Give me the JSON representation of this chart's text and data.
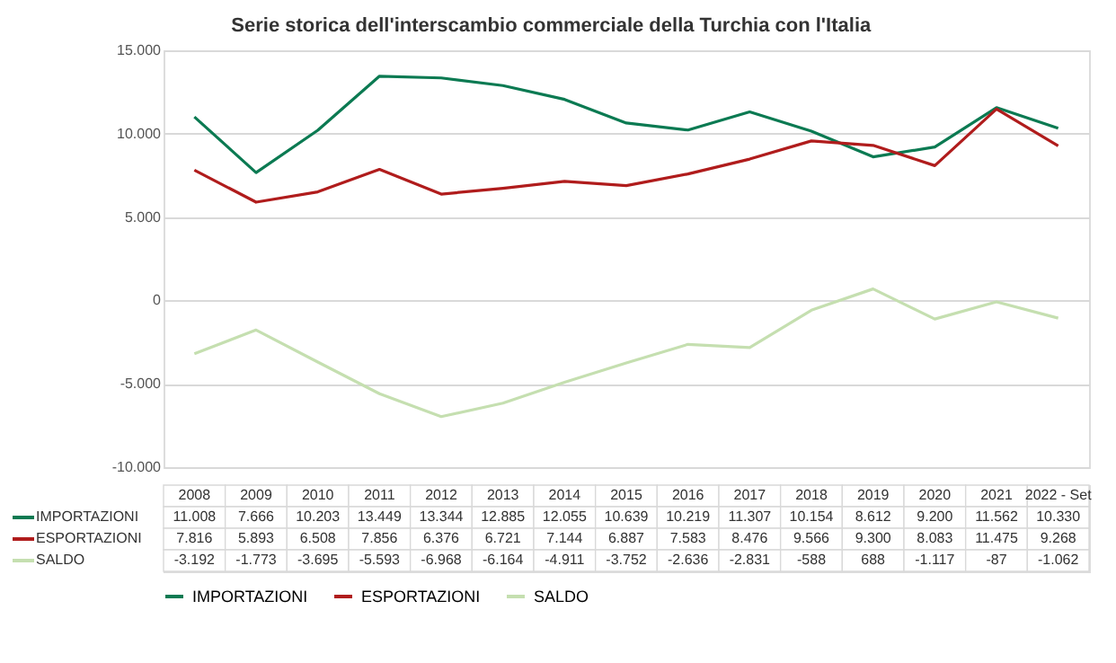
{
  "chart_data": {
    "type": "line",
    "title": "Serie storica dell'interscambio commerciale della Turchia con l'Italia",
    "categories": [
      "2008",
      "2009",
      "2010",
      "2011",
      "2012",
      "2013",
      "2014",
      "2015",
      "2016",
      "2017",
      "2018",
      "2019",
      "2020",
      "2021",
      "2022 - Set"
    ],
    "series": [
      {
        "name": "IMPORTAZIONI",
        "color": "#0b7a52",
        "values": [
          11008,
          7666,
          10203,
          13449,
          13344,
          12885,
          12055,
          10639,
          10219,
          11307,
          10154,
          8612,
          9200,
          11562,
          10330
        ],
        "value_labels": [
          "11.008",
          "7.666",
          "10.203",
          "13.449",
          "13.344",
          "12.885",
          "12.055",
          "10.639",
          "10.219",
          "11.307",
          "10.154",
          "8.612",
          "9.200",
          "11.562",
          "10.330"
        ]
      },
      {
        "name": "ESPORTAZIONI",
        "color": "#b01c1c",
        "values": [
          7816,
          5893,
          6508,
          7856,
          6376,
          6721,
          7144,
          6887,
          7583,
          8476,
          9566,
          9300,
          8083,
          11475,
          9268
        ],
        "value_labels": [
          "7.816",
          "5.893",
          "6.508",
          "7.856",
          "6.376",
          "6.721",
          "7.144",
          "6.887",
          "7.583",
          "8.476",
          "9.566",
          "9.300",
          "8.083",
          "11.475",
          "9.268"
        ]
      },
      {
        "name": "SALDO",
        "color": "#c5dfb0",
        "values": [
          -3192,
          -1773,
          -3695,
          -5593,
          -6968,
          -6164,
          -4911,
          -3752,
          -2636,
          -2831,
          -588,
          688,
          -1117,
          -87,
          -1062
        ],
        "value_labels": [
          "-3.192",
          "-1.773",
          "-3.695",
          "-5.593",
          "-6.968",
          "-6.164",
          "-4.911",
          "-3.752",
          "-2.636",
          "-2.831",
          "-588",
          "688",
          "-1.117",
          "-87",
          "-1.062"
        ]
      }
    ],
    "ylim": [
      -10000,
      15000
    ],
    "yticks": [
      {
        "value": -10000,
        "label": "-10.000"
      },
      {
        "value": -5000,
        "label": "-5.000"
      },
      0,
      {
        "value": 5000,
        "label": "5.000"
      },
      {
        "value": 10000,
        "label": "10.000"
      },
      {
        "value": 15000,
        "label": "15.000"
      }
    ],
    "grid": "y",
    "legend": "bottom",
    "marker": "none",
    "line_style": "solid"
  }
}
